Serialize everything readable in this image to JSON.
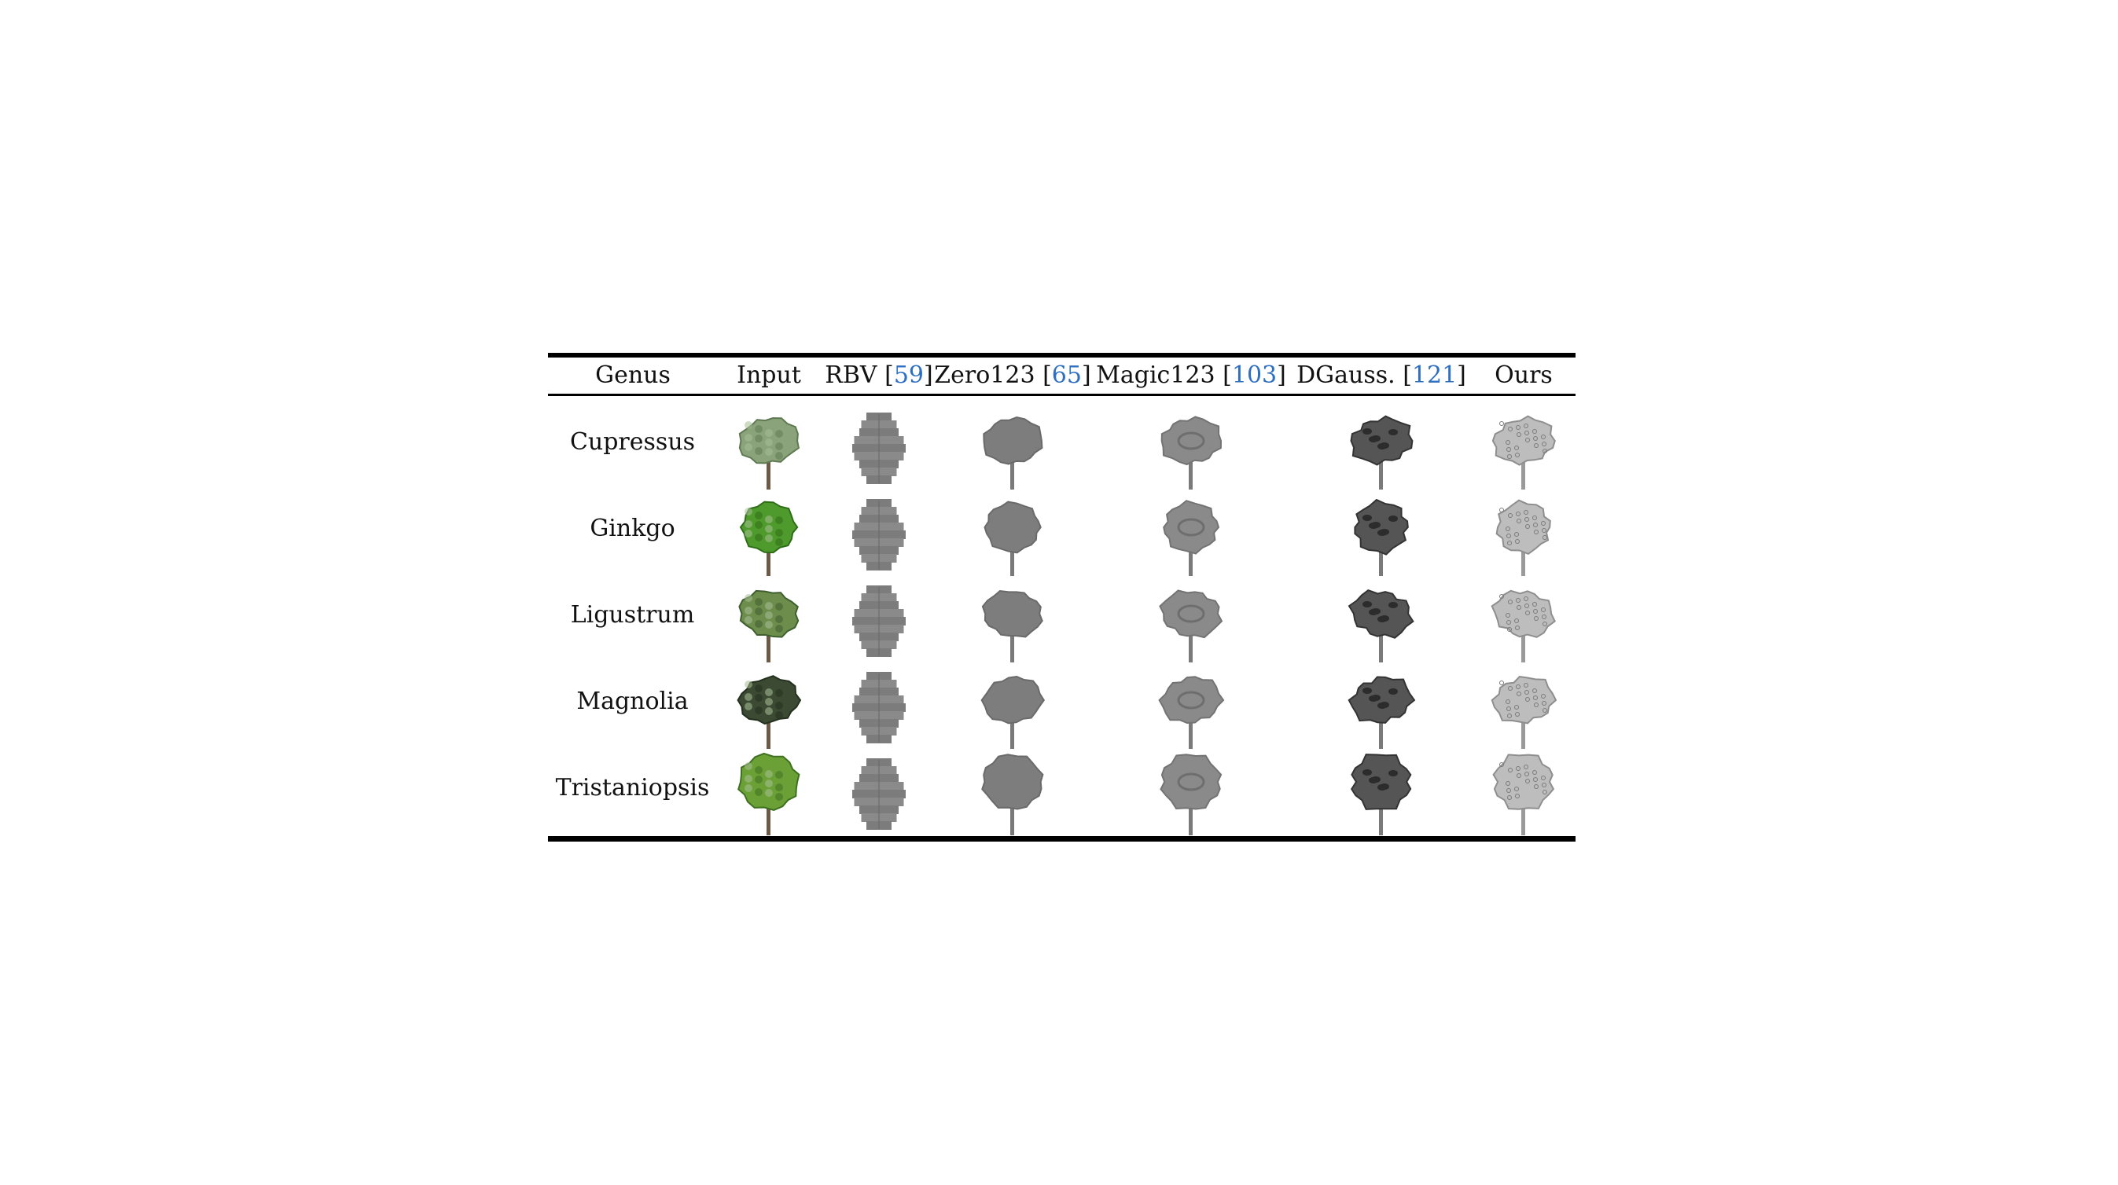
{
  "header": {
    "genus": "Genus",
    "input": "Input",
    "rbv": {
      "name": "RBV",
      "ref": "59"
    },
    "zero123": {
      "name": "Zero123",
      "ref": "65"
    },
    "magic123": {
      "name": "Magic123",
      "ref": "103"
    },
    "dgauss": {
      "name": "DGauss.",
      "ref": "121"
    },
    "ours": "Ours"
  },
  "rows": [
    {
      "genus": "Cupressus"
    },
    {
      "genus": "Ginkgo"
    },
    {
      "genus": "Ligustrum"
    },
    {
      "genus": "Magnolia"
    },
    {
      "genus": "Tristaniopsis"
    }
  ],
  "colors": {
    "citation": "#2f6fc0",
    "rule": "#000000"
  }
}
